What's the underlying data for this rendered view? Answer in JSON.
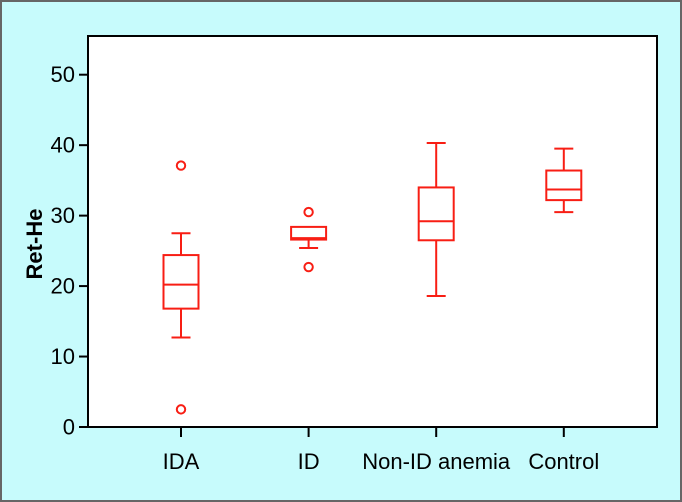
{
  "chart_data": {
    "type": "boxplot",
    "ylabel": "Ret-He",
    "yticks": [
      0,
      10,
      20,
      30,
      40,
      50
    ],
    "ylim": [
      0,
      55.4
    ],
    "categories": [
      "IDA",
      "ID",
      "Non-ID anemia",
      "Control"
    ],
    "series": [
      {
        "category": "IDA",
        "whisker_low": 12.7,
        "q1": 16.8,
        "median": 20.2,
        "q3": 24.4,
        "whisker_high": 27.5,
        "outliers": [
          37.1,
          2.5
        ]
      },
      {
        "category": "ID",
        "whisker_low": 25.4,
        "q1": 26.6,
        "median": 26.8,
        "q3": 28.4,
        "whisker_high": null,
        "outliers": [
          30.5,
          22.7
        ]
      },
      {
        "category": "Non-ID anemia",
        "whisker_low": 18.6,
        "q1": 26.5,
        "median": 29.2,
        "q3": 34.0,
        "whisker_high": 40.3,
        "outliers": []
      },
      {
        "category": "Control",
        "whisker_low": 30.5,
        "q1": 32.2,
        "median": 33.7,
        "q3": 36.4,
        "whisker_high": 39.5,
        "outliers": []
      }
    ],
    "colors": {
      "box": "#f81e14",
      "axis": "#000000",
      "plot_background": "#ffffff",
      "figure_background": "#c7fbfc",
      "figure_border": "#666666"
    }
  }
}
